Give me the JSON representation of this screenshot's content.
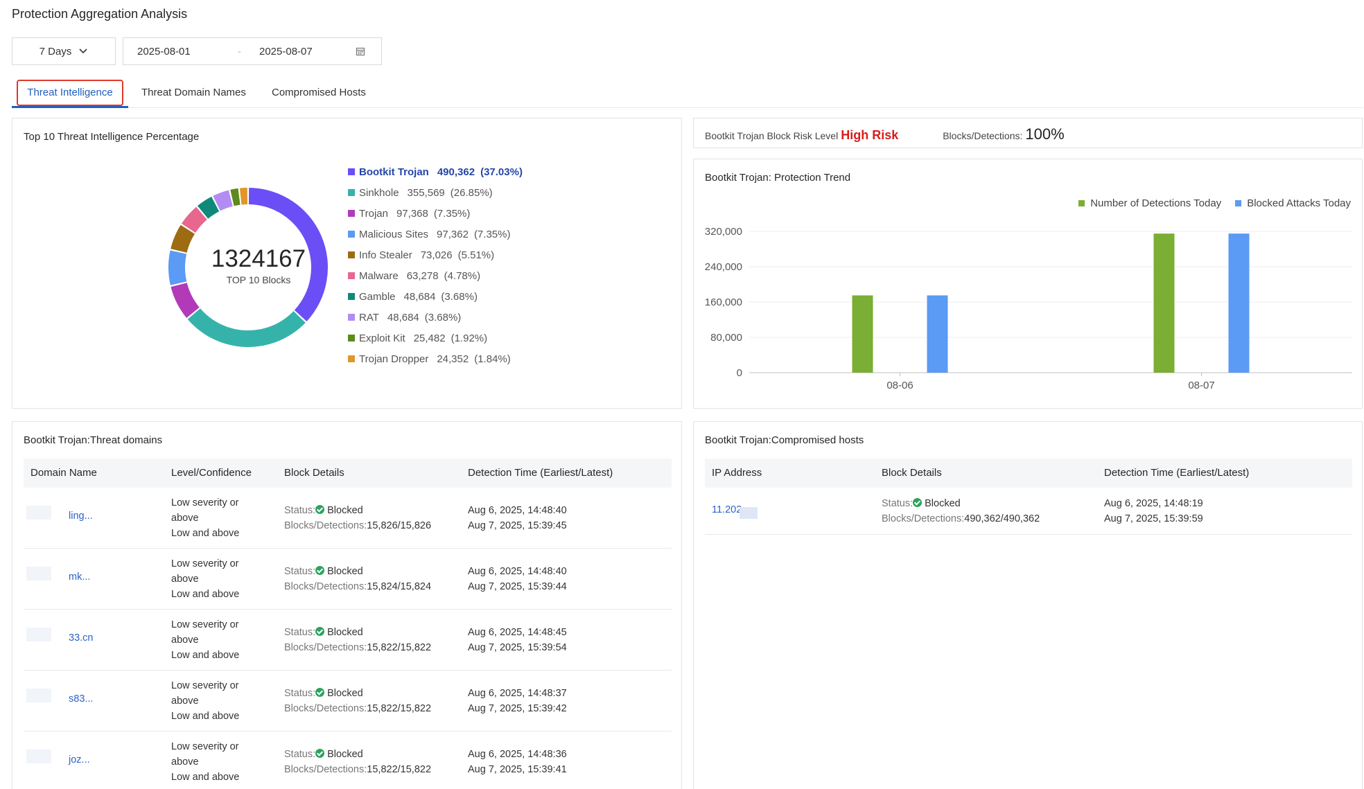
{
  "page": {
    "title": "Protection Aggregation Analysis"
  },
  "filters": {
    "range_label": "7 Days",
    "start_date": "2025-08-01",
    "separator": "-",
    "end_date": "2025-08-07"
  },
  "tabs": [
    {
      "label": "Threat Intelligence",
      "active": true
    },
    {
      "label": "Threat Domain Names",
      "active": false
    },
    {
      "label": "Compromised Hosts",
      "active": false
    }
  ],
  "top10": {
    "title": "Top 10 Threat Intelligence Percentage",
    "total": "1324167",
    "total_caption": "TOP 10 Blocks",
    "items": [
      {
        "name": "Bootkit Trojan",
        "value": "490,362",
        "pct": "(37.03%)",
        "share": 37.03,
        "color": "#6b4ef5"
      },
      {
        "name": "Sinkhole",
        "value": "355,569",
        "pct": "(26.85%)",
        "share": 26.85,
        "color": "#35b3ab"
      },
      {
        "name": "Trojan",
        "value": "97,368",
        "pct": "(7.35%)",
        "share": 7.35,
        "color": "#b23ab8"
      },
      {
        "name": "Malicious Sites",
        "value": "97,362",
        "pct": "(7.35%)",
        "share": 7.35,
        "color": "#5b9af5"
      },
      {
        "name": "Info Stealer",
        "value": "73,026",
        "pct": "(5.51%)",
        "share": 5.51,
        "color": "#9c6b12"
      },
      {
        "name": "Malware",
        "value": "63,278",
        "pct": "(4.78%)",
        "share": 4.78,
        "color": "#e8678f"
      },
      {
        "name": "Gamble",
        "value": "48,684",
        "pct": "(3.68%)",
        "share": 3.68,
        "color": "#0f8a7a"
      },
      {
        "name": "RAT",
        "value": "48,684",
        "pct": "(3.68%)",
        "share": 3.68,
        "color": "#b38cf3"
      },
      {
        "name": "Exploit Kit",
        "value": "25,482",
        "pct": "(1.92%)",
        "share": 1.92,
        "color": "#5d8a1c"
      },
      {
        "name": "Trojan Dropper",
        "value": "24,352",
        "pct": "(1.84%)",
        "share": 1.84,
        "color": "#e0972a"
      }
    ]
  },
  "risk": {
    "prefix": "Bootkit Trojan Block Risk Level",
    "level": "High Risk",
    "ratio_label": "Blocks/Detections:",
    "ratio_value": "100%"
  },
  "trend": {
    "title": "Bootkit Trojan: Protection Trend"
  },
  "chart_data": {
    "type": "bar",
    "categories": [
      "08-06",
      "08-07"
    ],
    "series": [
      {
        "name": "Number of Detections Today",
        "color": "#7aae34",
        "values": [
          175000,
          315000
        ]
      },
      {
        "name": "Blocked Attacks Today",
        "color": "#5b9af5",
        "values": [
          175000,
          315000
        ]
      }
    ],
    "yticks": [
      "0",
      "80,000",
      "160,000",
      "240,000",
      "320,000"
    ],
    "ylim": [
      0,
      320000
    ],
    "legend_position": "top-right",
    "grid": true
  },
  "domains": {
    "title": "Bootkit Trojan:Threat domains",
    "headers": [
      "Domain Name",
      "Level/Confidence",
      "Block Details",
      "Detection Time (Earliest/Latest)"
    ],
    "rows": [
      {
        "domain": "ling...",
        "level1": "Low severity or",
        "level2": "above",
        "level3": "Low and above",
        "status_label": "Status:",
        "status": "Blocked",
        "blocks_label": "Blocks/Detections:",
        "blocks": "15,826/15,826",
        "earliest": "Aug 6, 2025, 14:48:40",
        "latest": "Aug 7, 2025, 15:39:45"
      },
      {
        "domain": "mk...",
        "level1": "Low severity or",
        "level2": "above",
        "level3": "Low and above",
        "status_label": "Status:",
        "status": "Blocked",
        "blocks_label": "Blocks/Detections:",
        "blocks": "15,824/15,824",
        "earliest": "Aug 6, 2025, 14:48:40",
        "latest": "Aug 7, 2025, 15:39:44"
      },
      {
        "domain": "33.cn",
        "level1": "Low severity or",
        "level2": "above",
        "level3": "Low and above",
        "status_label": "Status:",
        "status": "Blocked",
        "blocks_label": "Blocks/Detections:",
        "blocks": "15,822/15,822",
        "earliest": "Aug 6, 2025, 14:48:45",
        "latest": "Aug 7, 2025, 15:39:54"
      },
      {
        "domain": "s83...",
        "level1": "Low severity or",
        "level2": "above",
        "level3": "Low and above",
        "status_label": "Status:",
        "status": "Blocked",
        "blocks_label": "Blocks/Detections:",
        "blocks": "15,822/15,822",
        "earliest": "Aug 6, 2025, 14:48:37",
        "latest": "Aug 7, 2025, 15:39:42"
      },
      {
        "domain": "joz...",
        "level1": "Low severity or",
        "level2": "above",
        "level3": "Low and above",
        "status_label": "Status:",
        "status": "Blocked",
        "blocks_label": "Blocks/Detections:",
        "blocks": "15,822/15,822",
        "earliest": "Aug 6, 2025, 14:48:36",
        "latest": "Aug 7, 2025, 15:39:41"
      }
    ]
  },
  "hosts": {
    "title": "Bootkit Trojan:Compromised hosts",
    "headers": [
      "IP Address",
      "Block Details",
      "Detection Time (Earliest/Latest)"
    ],
    "rows": [
      {
        "ip": "11.202",
        "status_label": "Status:",
        "status": "Blocked",
        "blocks_label": "Blocks/Detections:",
        "blocks": "490,362/490,362",
        "earliest": "Aug 6, 2025, 14:48:19",
        "latest": "Aug 7, 2025, 15:39:59"
      }
    ]
  }
}
